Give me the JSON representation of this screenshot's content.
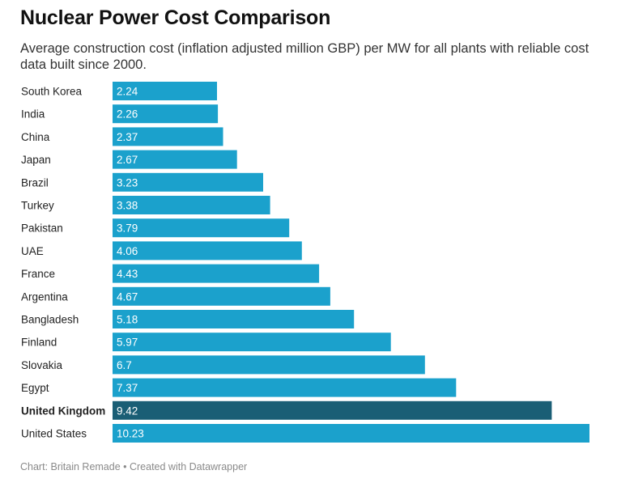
{
  "chart_data": {
    "type": "bar",
    "orientation": "horizontal",
    "title": "Nuclear Power Cost Comparison",
    "subtitle": "Average construction cost (inflation adjusted million GBP) per MW for all plants with reliable cost data built since 2000.",
    "xlabel": "",
    "ylabel": "",
    "xlim": [
      0,
      10.23
    ],
    "grid": false,
    "categories": [
      "South Korea",
      "India",
      "China",
      "Japan",
      "Brazil",
      "Turkey",
      "Pakistan",
      "UAE",
      "France",
      "Argentina",
      "Bangladesh",
      "Finland",
      "Slovakia",
      "Egypt",
      "United Kingdom",
      "United States"
    ],
    "value_labels": [
      "2.24",
      "2.26",
      "2.37",
      "2.67",
      "3.23",
      "3.38",
      "3.79",
      "4.06",
      "4.43",
      "4.67",
      "5.18",
      "5.97",
      "6.7",
      "7.37",
      "9.42",
      "10.23"
    ],
    "values": [
      2.24,
      2.26,
      2.37,
      2.67,
      3.23,
      3.38,
      3.79,
      4.06,
      4.43,
      4.67,
      5.18,
      5.97,
      6.7,
      7.37,
      9.42,
      10.23
    ],
    "highlight_category": "United Kingdom",
    "colors": {
      "bar": "#1ba1cc",
      "highlight": "#1a5e75",
      "value_label": "#ffffff",
      "category_label": "#222222"
    }
  },
  "footer": {
    "credit": "Chart: Britain Remade • Created with Datawrapper"
  }
}
